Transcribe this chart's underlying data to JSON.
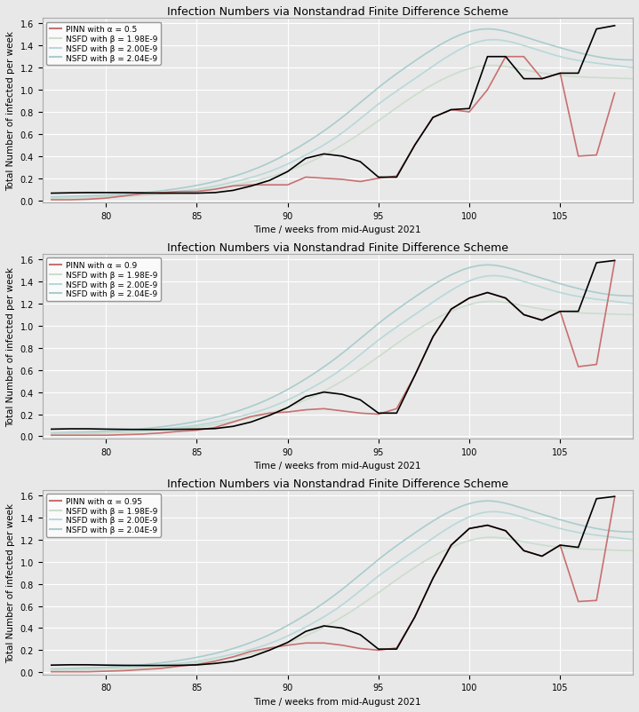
{
  "title": "Infection Numbers via Nonstandrad Finite Difference Scheme",
  "xlabel": "Time / weeks from mid-August 2021",
  "ylabel": "Total Number of infected per week",
  "xlim": [
    76.5,
    109
  ],
  "ylim": [
    -20000.0,
    1650000.0
  ],
  "yticks": [
    0,
    200000.0,
    400000.0,
    600000.0,
    800000.0,
    1000000.0,
    1200000.0,
    1400000.0,
    1600000.0
  ],
  "xticks": [
    80,
    85,
    90,
    95,
    100,
    105
  ],
  "bg_color": "#e8e8e8",
  "grid_color": "#ffffff",
  "title_fontsize": 9,
  "label_fontsize": 7.5,
  "tick_fontsize": 7,
  "subplots": [
    {
      "pinn_label": "PINN with α = 0.5",
      "pinn_color": "#c87070",
      "pinn_x": [
        77,
        78,
        79,
        80,
        81,
        82,
        83,
        84,
        85,
        86,
        87,
        88,
        89,
        90,
        91,
        92,
        93,
        94,
        95,
        96,
        97,
        98,
        99,
        100,
        101,
        102,
        103,
        104,
        105,
        106,
        107,
        108
      ],
      "pinn_y": [
        5000.0,
        5000.0,
        10000.0,
        20000.0,
        40000.0,
        60000.0,
        70000.0,
        80000.0,
        80000.0,
        100000.0,
        130000.0,
        140000.0,
        140000.0,
        140000.0,
        210000.0,
        200000.0,
        190000.0,
        170000.0,
        200000.0,
        220000.0,
        500000.0,
        750000.0,
        820000.0,
        800000.0,
        1000000.0,
        1300000.0,
        1300000.0,
        1100000.0,
        1150000.0,
        400000.0,
        410000.0,
        970000.0
      ],
      "black_x": [
        77,
        78,
        79,
        80,
        81,
        82,
        83,
        84,
        85,
        86,
        87,
        88,
        89,
        90,
        91,
        92,
        93,
        94,
        95,
        96,
        97,
        98,
        99,
        100,
        101,
        102,
        103,
        104,
        105,
        106,
        107,
        108
      ],
      "black_y": [
        65000.0,
        68000.0,
        70000.0,
        70000.0,
        70000.0,
        68000.0,
        65000.0,
        65000.0,
        65000.0,
        70000.0,
        90000.0,
        130000.0,
        180000.0,
        260000.0,
        380000.0,
        420000.0,
        400000.0,
        350000.0,
        210000.0,
        210000.0,
        500000.0,
        750000.0,
        820000.0,
        830000.0,
        1300000.0,
        1300000.0,
        1100000.0,
        1100000.0,
        1150000.0,
        1150000.0,
        1550000.0,
        1580000.0
      ],
      "nsfd_beta198_x": [
        77,
        79,
        81,
        83,
        85,
        87,
        89,
        91,
        93,
        95,
        97,
        99,
        101,
        103,
        105,
        107,
        109
      ],
      "nsfd_beta198_y": [
        20000.0,
        25000.0,
        35000.0,
        55000.0,
        85000.0,
        135000.0,
        210000.0,
        330000.0,
        500000.0,
        720000.0,
        950000.0,
        1130000.0,
        1220000.0,
        1180000.0,
        1130000.0,
        1110000.0,
        1100000.0
      ],
      "nsfd_beta200_x": [
        77,
        79,
        81,
        83,
        85,
        87,
        89,
        91,
        93,
        95,
        97,
        99,
        101,
        103,
        105,
        107,
        109
      ],
      "nsfd_beta200_y": [
        25000.0,
        30000.0,
        40000.0,
        65000.0,
        100000.0,
        165000.0,
        260000.0,
        410000.0,
        610000.0,
        870000.0,
        1100000.0,
        1320000.0,
        1450000.0,
        1400000.0,
        1300000.0,
        1240000.0,
        1200000.0
      ],
      "nsfd_beta204_x": [
        77,
        79,
        81,
        83,
        85,
        87,
        89,
        91,
        93,
        95,
        97,
        99,
        101,
        103,
        105,
        107,
        109
      ],
      "nsfd_beta204_y": [
        30000.0,
        40000.0,
        55000.0,
        85000.0,
        135000.0,
        215000.0,
        340000.0,
        520000.0,
        750000.0,
        1020000.0,
        1260000.0,
        1460000.0,
        1550000.0,
        1480000.0,
        1380000.0,
        1300000.0,
        1270000.0
      ]
    },
    {
      "pinn_label": "PINN with α = 0.9",
      "pinn_color": "#c87070",
      "pinn_x": [
        77,
        78,
        79,
        80,
        81,
        82,
        83,
        84,
        85,
        86,
        87,
        88,
        89,
        90,
        91,
        92,
        93,
        94,
        95,
        96,
        97,
        98,
        99,
        100,
        101,
        102,
        103,
        104,
        105,
        106,
        107,
        108
      ],
      "pinn_y": [
        10000.0,
        10000.0,
        10000.0,
        10000.0,
        15000.0,
        20000.0,
        30000.0,
        45000.0,
        55000.0,
        80000.0,
        130000.0,
        180000.0,
        210000.0,
        220000.0,
        240000.0,
        250000.0,
        230000.0,
        210000.0,
        200000.0,
        250000.0,
        550000.0,
        900000.0,
        1150000.0,
        1250000.0,
        1300000.0,
        1250000.0,
        1100000.0,
        1050000.0,
        1130000.0,
        630000.0,
        650000.0,
        1580000.0
      ],
      "black_x": [
        77,
        78,
        79,
        80,
        81,
        82,
        83,
        84,
        85,
        86,
        87,
        88,
        89,
        90,
        91,
        92,
        93,
        94,
        95,
        96,
        97,
        98,
        99,
        100,
        101,
        102,
        103,
        104,
        105,
        106,
        107,
        108
      ],
      "black_y": [
        65000.0,
        68000.0,
        68000.0,
        65000.0,
        63000.0,
        62000.0,
        62000.0,
        63000.0,
        65000.0,
        70000.0,
        90000.0,
        130000.0,
        190000.0,
        260000.0,
        360000.0,
        400000.0,
        380000.0,
        330000.0,
        210000.0,
        210000.0,
        550000.0,
        900000.0,
        1150000.0,
        1250000.0,
        1300000.0,
        1250000.0,
        1100000.0,
        1050000.0,
        1130000.0,
        1130000.0,
        1570000.0,
        1590000.0
      ],
      "nsfd_beta198_x": [
        77,
        79,
        81,
        83,
        85,
        87,
        89,
        91,
        93,
        95,
        97,
        99,
        101,
        103,
        105,
        107,
        109
      ],
      "nsfd_beta198_y": [
        20000.0,
        25000.0,
        35000.0,
        55000.0,
        85000.0,
        135000.0,
        210000.0,
        330000.0,
        500000.0,
        720000.0,
        950000.0,
        1130000.0,
        1220000.0,
        1180000.0,
        1130000.0,
        1110000.0,
        1100000.0
      ],
      "nsfd_beta200_x": [
        77,
        79,
        81,
        83,
        85,
        87,
        89,
        91,
        93,
        95,
        97,
        99,
        101,
        103,
        105,
        107,
        109
      ],
      "nsfd_beta200_y": [
        25000.0,
        30000.0,
        40000.0,
        65000.0,
        100000.0,
        165000.0,
        260000.0,
        410000.0,
        610000.0,
        870000.0,
        1100000.0,
        1320000.0,
        1450000.0,
        1400000.0,
        1300000.0,
        1240000.0,
        1200000.0
      ],
      "nsfd_beta204_x": [
        77,
        79,
        81,
        83,
        85,
        87,
        89,
        91,
        93,
        95,
        97,
        99,
        101,
        103,
        105,
        107,
        109
      ],
      "nsfd_beta204_y": [
        30000.0,
        40000.0,
        55000.0,
        85000.0,
        135000.0,
        215000.0,
        340000.0,
        520000.0,
        750000.0,
        1020000.0,
        1260000.0,
        1460000.0,
        1550000.0,
        1480000.0,
        1380000.0,
        1300000.0,
        1270000.0
      ]
    },
    {
      "pinn_label": "PINN with α = 0.95",
      "pinn_color": "#c87070",
      "pinn_x": [
        77,
        78,
        79,
        80,
        81,
        82,
        83,
        84,
        85,
        86,
        87,
        88,
        89,
        90,
        91,
        92,
        93,
        94,
        95,
        96,
        97,
        98,
        99,
        100,
        101,
        102,
        103,
        104,
        105,
        106,
        107,
        108
      ],
      "pinn_y": [
        5000.0,
        5000.0,
        5000.0,
        10000.0,
        15000.0,
        25000.0,
        35000.0,
        55000.0,
        70000.0,
        100000.0,
        140000.0,
        190000.0,
        220000.0,
        245000.0,
        265000.0,
        265000.0,
        245000.0,
        215000.0,
        200000.0,
        220000.0,
        500000.0,
        850000.0,
        1150000.0,
        1300000.0,
        1330000.0,
        1280000.0,
        1100000.0,
        1050000.0,
        1150000.0,
        640000.0,
        650000.0,
        1580000.0
      ],
      "black_x": [
        77,
        78,
        79,
        80,
        81,
        82,
        83,
        84,
        85,
        86,
        87,
        88,
        89,
        90,
        91,
        92,
        93,
        94,
        95,
        96,
        97,
        98,
        99,
        100,
        101,
        102,
        103,
        104,
        105,
        106,
        107,
        108
      ],
      "black_y": [
        65000.0,
        68000.0,
        68000.0,
        65000.0,
        63000.0,
        62000.0,
        62000.0,
        63000.0,
        67000.0,
        80000.0,
        100000.0,
        140000.0,
        200000.0,
        270000.0,
        370000.0,
        420000.0,
        400000.0,
        340000.0,
        210000.0,
        210000.0,
        500000.0,
        850000.0,
        1150000.0,
        1300000.0,
        1330000.0,
        1280000.0,
        1100000.0,
        1050000.0,
        1150000.0,
        1130000.0,
        1570000.0,
        1590000.0
      ],
      "nsfd_beta198_x": [
        77,
        79,
        81,
        83,
        85,
        87,
        89,
        91,
        93,
        95,
        97,
        99,
        101,
        103,
        105,
        107,
        109
      ],
      "nsfd_beta198_y": [
        20000.0,
        25000.0,
        35000.0,
        55000.0,
        85000.0,
        135000.0,
        210000.0,
        330000.0,
        500000.0,
        720000.0,
        950000.0,
        1130000.0,
        1220000.0,
        1180000.0,
        1130000.0,
        1110000.0,
        1100000.0
      ],
      "nsfd_beta200_x": [
        77,
        79,
        81,
        83,
        85,
        87,
        89,
        91,
        93,
        95,
        97,
        99,
        101,
        103,
        105,
        107,
        109
      ],
      "nsfd_beta200_y": [
        25000.0,
        30000.0,
        40000.0,
        65000.0,
        100000.0,
        165000.0,
        260000.0,
        410000.0,
        610000.0,
        870000.0,
        1100000.0,
        1320000.0,
        1450000.0,
        1400000.0,
        1300000.0,
        1240000.0,
        1200000.0
      ],
      "nsfd_beta204_x": [
        77,
        79,
        81,
        83,
        85,
        87,
        89,
        91,
        93,
        95,
        97,
        99,
        101,
        103,
        105,
        107,
        109
      ],
      "nsfd_beta204_y": [
        30000.0,
        40000.0,
        55000.0,
        85000.0,
        135000.0,
        215000.0,
        340000.0,
        520000.0,
        750000.0,
        1020000.0,
        1260000.0,
        1460000.0,
        1550000.0,
        1480000.0,
        1380000.0,
        1300000.0,
        1270000.0
      ]
    }
  ],
  "nsfd_beta198_color": "#2e8b57",
  "nsfd_beta200_color": "#87ceeb",
  "nsfd_beta204_color": "#191970",
  "nsfd_beta198_label": "NSFD with β = 1.98E-9",
  "nsfd_beta200_label": "NSFD with β = 2.00E-9",
  "nsfd_beta204_label": "NSFD with β = 2.04E-9"
}
